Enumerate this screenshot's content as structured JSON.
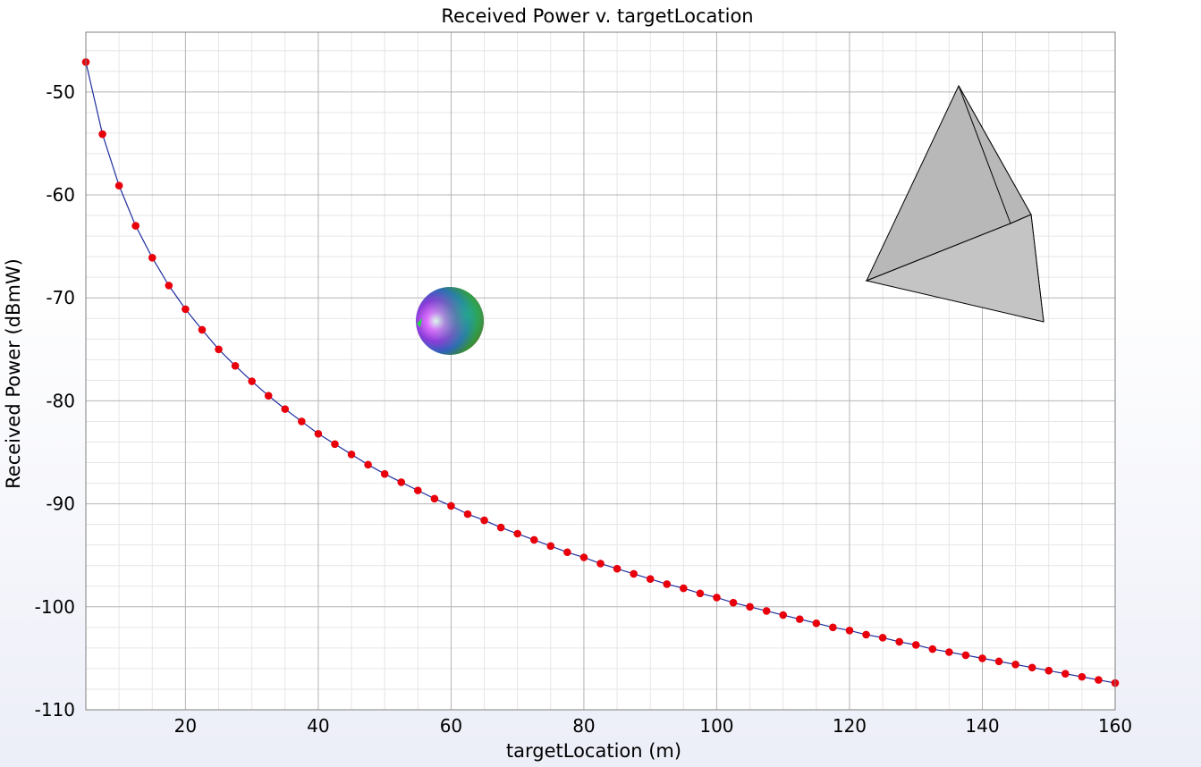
{
  "chart_data": {
    "type": "line",
    "title": "Received Power v. targetLocation",
    "xlabel": "targetLocation (m)",
    "ylabel": "Received Power (dBmW)",
    "xlim": [
      5,
      160
    ],
    "ylim": [
      -110,
      -44.2
    ],
    "xticks": [
      20,
      40,
      60,
      80,
      100,
      120,
      140,
      160
    ],
    "yticks": [
      -50,
      -60,
      -70,
      -80,
      -90,
      -100,
      -110
    ],
    "grid": true,
    "legend": "none",
    "line_color": "#1f2d9e",
    "marker_color": "#e8000b",
    "series": [
      {
        "x": [
          5,
          7.5,
          10,
          12.5,
          15,
          17.5,
          20,
          22.5,
          25,
          27.5,
          30,
          32.5,
          35,
          37.5,
          40,
          42.5,
          45,
          47.5,
          50,
          52.5,
          55,
          57.5,
          60,
          62.5,
          65,
          67.5,
          70,
          72.5,
          75,
          77.5,
          80,
          82.5,
          85,
          87.5,
          90,
          92.5,
          95,
          97.5,
          100,
          102.5,
          105,
          107.5,
          110,
          112.5,
          115,
          117.5,
          120,
          122.5,
          125,
          127.5,
          130,
          132.5,
          135,
          137.5,
          140,
          142.5,
          145,
          147.5,
          150,
          152.5,
          155,
          157.5,
          160
        ],
        "y": [
          -47.1,
          -54.1,
          -59.1,
          -63.0,
          -66.1,
          -68.8,
          -71.1,
          -73.1,
          -75.0,
          -76.6,
          -78.1,
          -79.5,
          -80.8,
          -82.0,
          -83.2,
          -84.2,
          -85.2,
          -86.2,
          -87.1,
          -87.9,
          -88.7,
          -89.5,
          -90.2,
          -91.0,
          -91.6,
          -92.3,
          -92.9,
          -93.5,
          -94.1,
          -94.7,
          -95.2,
          -95.8,
          -96.3,
          -96.8,
          -97.3,
          -97.8,
          -98.2,
          -98.7,
          -99.1,
          -99.6,
          -100.0,
          -100.4,
          -100.8,
          -101.2,
          -101.6,
          -102.0,
          -102.3,
          -102.7,
          -103.0,
          -103.4,
          -103.7,
          -104.1,
          -104.4,
          -104.7,
          -105.0,
          -105.3,
          -105.6,
          -105.9,
          -106.2,
          -106.5,
          -106.8,
          -107.1,
          -107.4
        ]
      }
    ]
  }
}
